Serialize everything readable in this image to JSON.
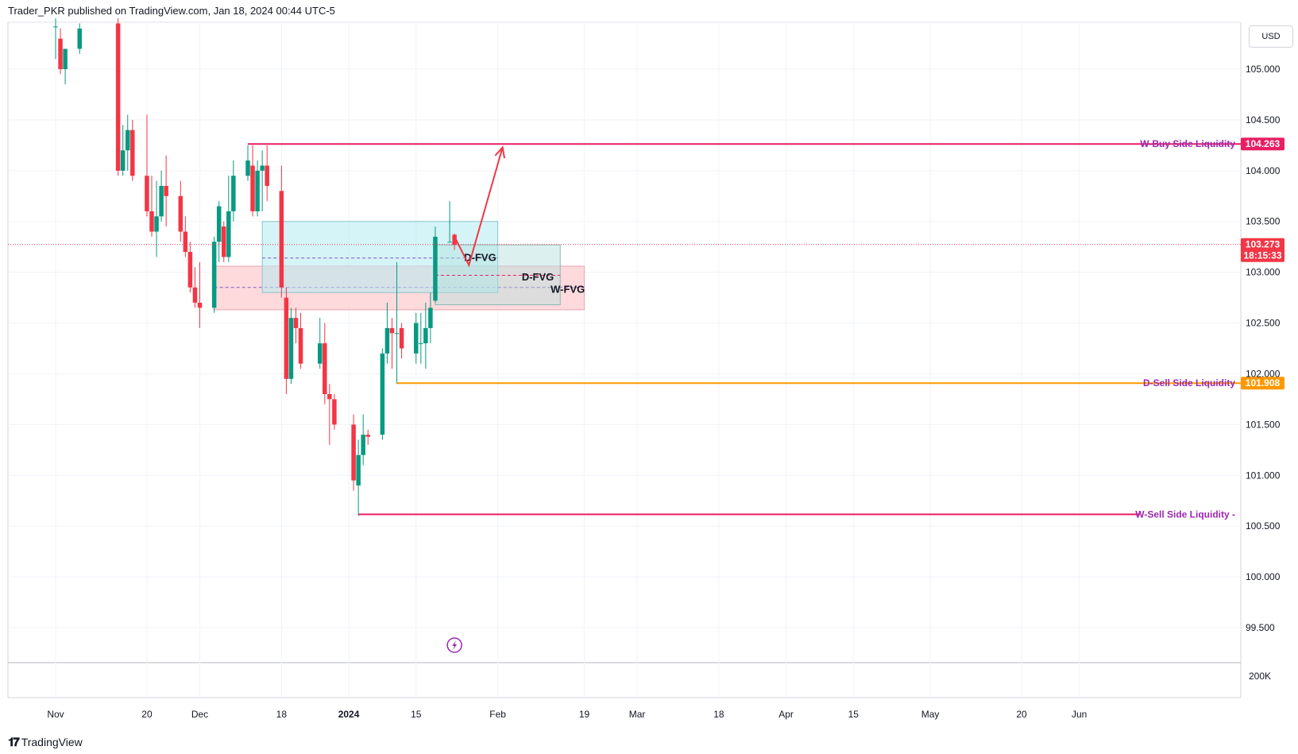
{
  "header": {
    "publisher": "Trader_PKR published on TradingView.com, Jan 18, 2024 00:44 UTC-5"
  },
  "currency": "USD",
  "footer": {
    "brand": "TradingView"
  },
  "colors": {
    "bull": "#089981",
    "bear": "#f23645",
    "buy_liq": "#e91e63",
    "sell_liq": "#ff9800",
    "label_purple": "#9c27b0",
    "d_fvg_fill": "#b2ebf2",
    "w_fvg_fill": "#ffcdd2"
  },
  "chart_data": {
    "type": "candlestick",
    "symbol_currency": "USD",
    "y_axis": {
      "min": 99.5,
      "max": 105.25,
      "ticks": [
        "105.000",
        "104.500",
        "104.000",
        "103.500",
        "103.000",
        "102.500",
        "102.000",
        "101.500",
        "101.000",
        "100.500",
        "100.000",
        "99.500"
      ]
    },
    "volume_axis_label": "200K",
    "x_ticks": [
      "Nov",
      "20",
      "Dec",
      "18",
      "2024",
      "15",
      "Feb",
      "19",
      "Mar",
      "18",
      "Apr",
      "15",
      "May",
      "20",
      "Jun"
    ],
    "last_price": "103.273",
    "countdown": "18:15:33",
    "candles": [
      {
        "d": "2023-11-01",
        "o": 105.42,
        "h": 105.5,
        "l": 105.1,
        "c": 105.42
      },
      {
        "d": "2023-11-02",
        "o": 105.3,
        "h": 105.4,
        "l": 104.95,
        "c": 105.0
      },
      {
        "d": "2023-11-03",
        "o": 105.0,
        "h": 105.15,
        "l": 104.85,
        "c": 105.2
      },
      {
        "d": "2023-11-06",
        "o": 105.2,
        "h": 105.45,
        "l": 105.15,
        "c": 105.4
      },
      {
        "d": "2023-11-14",
        "o": 105.45,
        "h": 105.5,
        "l": 103.95,
        "c": 104.0
      },
      {
        "d": "2023-11-15",
        "o": 104.0,
        "h": 104.45,
        "l": 103.95,
        "c": 104.2
      },
      {
        "d": "2023-11-16",
        "o": 104.2,
        "h": 104.55,
        "l": 104.0,
        "c": 104.4
      },
      {
        "d": "2023-11-17",
        "o": 104.4,
        "h": 104.5,
        "l": 103.9,
        "c": 103.95
      },
      {
        "d": "2023-11-20",
        "o": 103.95,
        "h": 104.55,
        "l": 103.55,
        "c": 103.6
      },
      {
        "d": "2023-11-21",
        "o": 103.6,
        "h": 103.95,
        "l": 103.35,
        "c": 103.4
      },
      {
        "d": "2023-11-22",
        "o": 103.4,
        "h": 103.9,
        "l": 103.15,
        "c": 103.55
      },
      {
        "d": "2023-11-23",
        "o": 103.55,
        "h": 104.0,
        "l": 103.5,
        "c": 103.85
      },
      {
        "d": "2023-11-24",
        "o": 103.85,
        "h": 104.15,
        "l": 103.45,
        "c": 103.75
      },
      {
        "d": "2023-11-27",
        "o": 103.75,
        "h": 103.9,
        "l": 103.3,
        "c": 103.4
      },
      {
        "d": "2023-11-28",
        "o": 103.4,
        "h": 103.55,
        "l": 103.15,
        "c": 103.2
      },
      {
        "d": "2023-11-29",
        "o": 103.2,
        "h": 103.3,
        "l": 102.8,
        "c": 102.85
      },
      {
        "d": "2023-11-30",
        "o": 102.85,
        "h": 103.05,
        "l": 102.65,
        "c": 102.7
      },
      {
        "d": "2023-12-01",
        "o": 102.7,
        "h": 103.1,
        "l": 102.45,
        "c": 102.65
      },
      {
        "d": "2023-12-04",
        "o": 102.65,
        "h": 103.35,
        "l": 102.6,
        "c": 103.3
      },
      {
        "d": "2023-12-05",
        "o": 103.3,
        "h": 103.7,
        "l": 103.1,
        "c": 103.65
      },
      {
        "d": "2023-12-06",
        "o": 103.45,
        "h": 103.5,
        "l": 103.1,
        "c": 103.15
      },
      {
        "d": "2023-12-07",
        "o": 103.15,
        "h": 103.95,
        "l": 103.1,
        "c": 103.6
      },
      {
        "d": "2023-12-08",
        "o": 103.6,
        "h": 104.1,
        "l": 103.5,
        "c": 103.95
      },
      {
        "d": "2023-12-11",
        "o": 103.95,
        "h": 104.25,
        "l": 103.9,
        "c": 104.1
      },
      {
        "d": "2023-12-12",
        "o": 104.05,
        "h": 104.25,
        "l": 103.55,
        "c": 103.6
      },
      {
        "d": "2023-12-13",
        "o": 103.6,
        "h": 104.1,
        "l": 103.55,
        "c": 104.0
      },
      {
        "d": "2023-12-14",
        "o": 104.0,
        "h": 104.2,
        "l": 103.6,
        "c": 104.05
      },
      {
        "d": "2023-12-15",
        "o": 104.05,
        "h": 104.25,
        "l": 103.7,
        "c": 103.85
      },
      {
        "d": "2023-12-18",
        "o": 103.8,
        "h": 104.05,
        "l": 102.75,
        "c": 102.85
      },
      {
        "d": "2023-12-19",
        "o": 102.75,
        "h": 102.85,
        "l": 101.8,
        "c": 101.95
      },
      {
        "d": "2023-12-20",
        "o": 101.95,
        "h": 102.65,
        "l": 101.9,
        "c": 102.55
      },
      {
        "d": "2023-12-21",
        "o": 102.55,
        "h": 102.65,
        "l": 102.3,
        "c": 102.45
      },
      {
        "d": "2023-12-22",
        "o": 102.45,
        "h": 102.6,
        "l": 102.05,
        "c": 102.1
      },
      {
        "d": "2023-12-26",
        "o": 102.1,
        "h": 102.55,
        "l": 102.05,
        "c": 102.3
      },
      {
        "d": "2023-12-27",
        "o": 102.3,
        "h": 102.5,
        "l": 101.7,
        "c": 101.8
      },
      {
        "d": "2023-12-28",
        "o": 101.8,
        "h": 101.9,
        "l": 101.3,
        "c": 101.75
      },
      {
        "d": "2023-12-29",
        "o": 101.75,
        "h": 101.8,
        "l": 101.45,
        "c": 101.5
      },
      {
        "d": "2024-01-02",
        "o": 101.5,
        "h": 101.6,
        "l": 100.85,
        "c": 100.95
      },
      {
        "d": "2024-01-03",
        "o": 100.9,
        "h": 101.35,
        "l": 100.6,
        "c": 101.2
      },
      {
        "d": "2024-01-04",
        "o": 101.2,
        "h": 101.6,
        "l": 101.1,
        "c": 101.4
      },
      {
        "d": "2024-01-05",
        "o": 101.4,
        "h": 101.45,
        "l": 101.3,
        "c": 101.38
      },
      {
        "d": "2024-01-08",
        "o": 101.4,
        "h": 102.25,
        "l": 101.35,
        "c": 102.2
      },
      {
        "d": "2024-01-09",
        "o": 102.2,
        "h": 102.7,
        "l": 102.1,
        "c": 102.45
      },
      {
        "d": "2024-01-10",
        "o": 102.45,
        "h": 102.55,
        "l": 102.05,
        "c": 102.4
      },
      {
        "d": "2024-01-11",
        "o": 102.4,
        "h": 103.1,
        "l": 101.9,
        "c": 102.4
      },
      {
        "d": "2024-01-12",
        "o": 102.45,
        "h": 102.5,
        "l": 102.15,
        "c": 102.25
      },
      {
        "d": "2024-01-15",
        "o": 102.2,
        "h": 102.6,
        "l": 102.1,
        "c": 102.5
      },
      {
        "d": "2024-01-16",
        "o": 102.3,
        "h": 102.6,
        "l": 102.1,
        "c": 102.3
      },
      {
        "d": "2024-01-17",
        "o": 102.3,
        "h": 102.7,
        "l": 102.05,
        "c": 102.45
      },
      {
        "d": "2024-01-18",
        "o": 102.45,
        "h": 102.8,
        "l": 102.3,
        "c": 102.65
      },
      {
        "d": "2024-01-19",
        "o": 102.72,
        "h": 103.45,
        "l": 102.7,
        "c": 103.35
      },
      {
        "d": "2024-01-22",
        "o": 103.3,
        "h": 103.7,
        "l": 103.3,
        "c": 103.3
      },
      {
        "d": "2024-01-23",
        "o": 103.37,
        "h": 103.38,
        "l": 103.22,
        "c": 103.27
      }
    ],
    "fvg_zones": [
      {
        "label": "D-FVG",
        "top": 103.5,
        "bottom": 102.8,
        "mid": 103.14,
        "from": "2023-12-14",
        "to": "2024-02-01"
      },
      {
        "label": "D-FVG",
        "top": 103.27,
        "bottom": 102.68,
        "mid": 102.97,
        "from": "2024-01-19",
        "to": "2024-02-14"
      },
      {
        "label": "W-FVG",
        "top": 103.06,
        "bottom": 102.63,
        "mid": 102.85,
        "from": "2023-12-04",
        "to": "2024-02-19"
      }
    ],
    "liquidity_levels": [
      {
        "label": "W-Buy Side Liquidity",
        "price": 104.263,
        "tag": "104.263",
        "from": "2023-12-11"
      },
      {
        "label": "D-Sell Side Liquidity",
        "price": 101.908,
        "tag": "101.908",
        "from": "2024-01-11"
      },
      {
        "label": "W-Sell Side Liquidity",
        "price": 100.616,
        "tag": "",
        "from": "2024-01-03"
      }
    ],
    "projection_path": [
      {
        "d": "2024-01-23",
        "p": 103.35
      },
      {
        "d": "2024-01-26",
        "p": 103.07
      },
      {
        "d": "2024-02-02",
        "p": 104.23
      }
    ]
  }
}
